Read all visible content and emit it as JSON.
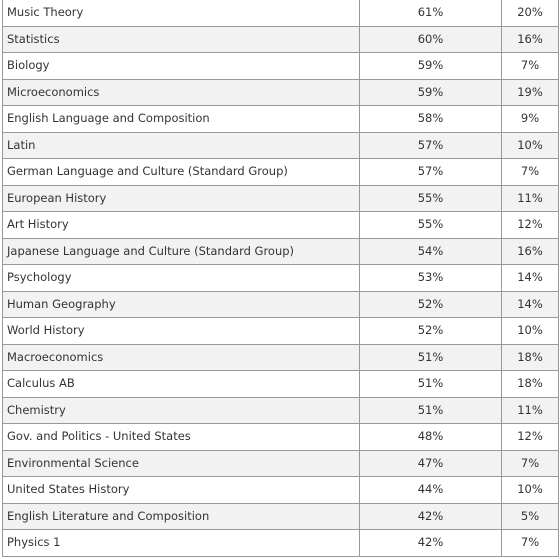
{
  "table": {
    "rows": [
      {
        "subject": "Music Theory",
        "pct_a": "61%",
        "pct_b": "20%"
      },
      {
        "subject": "Statistics",
        "pct_a": "60%",
        "pct_b": "16%"
      },
      {
        "subject": "Biology",
        "pct_a": "59%",
        "pct_b": "7%"
      },
      {
        "subject": "Microeconomics",
        "pct_a": "59%",
        "pct_b": "19%"
      },
      {
        "subject": "English Language and Composition",
        "pct_a": "58%",
        "pct_b": "9%"
      },
      {
        "subject": "Latin",
        "pct_a": "57%",
        "pct_b": "10%"
      },
      {
        "subject": "German Language and Culture (Standard Group)",
        "pct_a": "57%",
        "pct_b": "7%"
      },
      {
        "subject": "European History",
        "pct_a": "55%",
        "pct_b": "11%"
      },
      {
        "subject": "Art History",
        "pct_a": "55%",
        "pct_b": "12%"
      },
      {
        "subject": "Japanese Language and Culture (Standard Group)",
        "pct_a": "54%",
        "pct_b": "16%"
      },
      {
        "subject": "Psychology",
        "pct_a": "53%",
        "pct_b": "14%"
      },
      {
        "subject": "Human Geography",
        "pct_a": "52%",
        "pct_b": "14%"
      },
      {
        "subject": "World History",
        "pct_a": "52%",
        "pct_b": "10%"
      },
      {
        "subject": "Macroeconomics",
        "pct_a": "51%",
        "pct_b": "18%"
      },
      {
        "subject": "Calculus AB",
        "pct_a": "51%",
        "pct_b": "18%"
      },
      {
        "subject": "Chemistry",
        "pct_a": "51%",
        "pct_b": "11%"
      },
      {
        "subject": "Gov. and Politics - United States",
        "pct_a": "48%",
        "pct_b": "12%"
      },
      {
        "subject": "Environmental Science",
        "pct_a": "47%",
        "pct_b": "7%"
      },
      {
        "subject": "United States History",
        "pct_a": "44%",
        "pct_b": "10%"
      },
      {
        "subject": "English Literature and Composition",
        "pct_a": "42%",
        "pct_b": "5%"
      },
      {
        "subject": "Physics 1",
        "pct_a": "42%",
        "pct_b": "7%"
      }
    ]
  },
  "colors": {
    "border": "#999999",
    "stripe": "#f2f2f2",
    "text": "#333333"
  }
}
